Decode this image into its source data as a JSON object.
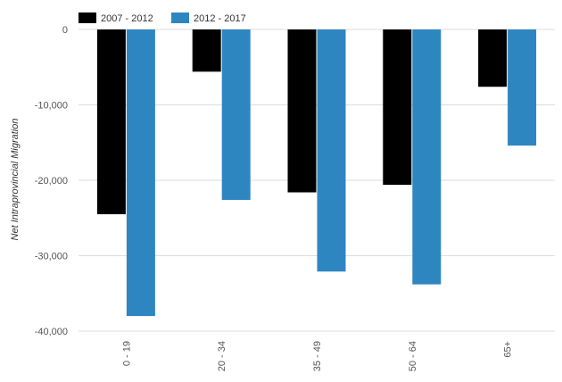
{
  "chart_data": {
    "type": "bar",
    "categories": [
      "0 - 19",
      "20 - 34",
      "35 - 49",
      "50 - 64",
      "65+"
    ],
    "series": [
      {
        "name": "2007 - 2012",
        "color": "#000000",
        "values": [
          -24500,
          -5600,
          -21600,
          -20600,
          -7600
        ]
      },
      {
        "name": "2012 - 2017",
        "color": "#2e86c1",
        "values": [
          -38000,
          -22600,
          -32100,
          -33800,
          -15400
        ]
      }
    ],
    "title": "",
    "xlabel": "",
    "ylabel": "Net Intraprovincial Migration",
    "ylim": [
      -40000,
      0
    ],
    "yticks": [
      0,
      -10000,
      -20000,
      -30000,
      -40000
    ],
    "ytick_labels": [
      "0",
      "-10,000",
      "-20,000",
      "-30,000",
      "-40,000"
    ],
    "grid": true,
    "legend_position": "top-left"
  }
}
